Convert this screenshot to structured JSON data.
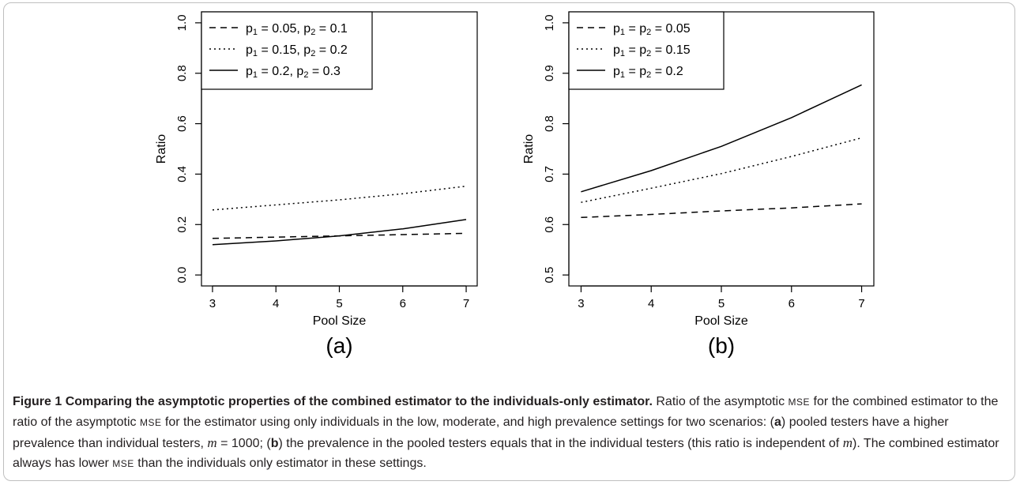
{
  "chart_data": [
    {
      "type": "line",
      "panel_label": "(a)",
      "xlabel": "Pool Size",
      "ylabel": "Ratio",
      "xlim": [
        3,
        7
      ],
      "ylim": [
        0.0,
        1.0
      ],
      "x_ticks": [
        3,
        4,
        5,
        6,
        7
      ],
      "y_ticks": [
        0.0,
        0.2,
        0.4,
        0.6,
        0.8,
        1.0
      ],
      "y_tick_labels": [
        "0.0",
        "0.2",
        "0.4",
        "0.6",
        "0.8",
        "1.0"
      ],
      "legend_position": "top-left",
      "x": [
        3,
        4,
        5,
        6,
        7
      ],
      "series": [
        {
          "style": "dashed",
          "legend": {
            "p1": "p",
            "s1": "1",
            "v1": " = 0.05, ",
            "p2": "p",
            "s2": "2",
            "v2": " = 0.1"
          },
          "values": [
            0.145,
            0.15,
            0.155,
            0.16,
            0.165
          ]
        },
        {
          "style": "dotted",
          "legend": {
            "p1": "p",
            "s1": "1",
            "v1": " = 0.15, ",
            "p2": "p",
            "s2": "2",
            "v2": " = 0.2"
          },
          "values": [
            0.258,
            0.278,
            0.298,
            0.322,
            0.352
          ]
        },
        {
          "style": "solid",
          "legend": {
            "p1": "p",
            "s1": "1",
            "v1": " = 0.2, ",
            "p2": "p",
            "s2": "2",
            "v2": " = 0.3"
          },
          "values": [
            0.12,
            0.135,
            0.155,
            0.183,
            0.22
          ]
        }
      ]
    },
    {
      "type": "line",
      "panel_label": "(b)",
      "xlabel": "Pool Size",
      "ylabel": "Ratio",
      "xlim": [
        3,
        7
      ],
      "ylim": [
        0.5,
        1.0
      ],
      "x_ticks": [
        3,
        4,
        5,
        6,
        7
      ],
      "y_ticks": [
        0.5,
        0.6,
        0.7,
        0.8,
        0.9,
        1.0
      ],
      "y_tick_labels": [
        "0.5",
        "0.6",
        "0.7",
        "0.8",
        "0.9",
        "1.0"
      ],
      "legend_position": "top-left",
      "x": [
        3,
        4,
        5,
        6,
        7
      ],
      "series": [
        {
          "style": "dashed",
          "legend": {
            "p1": "p",
            "s1": "1",
            "v1": " = ",
            "p2": "p",
            "s2": "2",
            "v2": " = 0.05"
          },
          "values": [
            0.614,
            0.62,
            0.627,
            0.633,
            0.641
          ]
        },
        {
          "style": "dotted",
          "legend": {
            "p1": "p",
            "s1": "1",
            "v1": " = ",
            "p2": "p",
            "s2": "2",
            "v2": " = 0.15"
          },
          "values": [
            0.644,
            0.672,
            0.701,
            0.735,
            0.772
          ]
        },
        {
          "style": "solid",
          "legend": {
            "p1": "p",
            "s1": "1",
            "v1": " = ",
            "p2": "p",
            "s2": "2",
            "v2": " = 0.2"
          },
          "values": [
            0.665,
            0.707,
            0.755,
            0.812,
            0.877
          ]
        }
      ]
    }
  ],
  "caption": {
    "figure_label": "Figure 1",
    "title": "Comparing the asymptotic properties of the combined estimator to the individuals-only estimator.",
    "t1": "Ratio of the asymptotic ",
    "mse1": "MSE",
    "t2": " for the combined estimator to the ratio of the asymptotic ",
    "mse2": "MSE",
    "t3": " for the estimator using only individuals in the low, moderate, and high prevalence settings for two scenarios: (",
    "a": "a",
    "t4": ") pooled testers have a higher prevalence than individual testers, ",
    "m1": "m",
    "t5": " = 1000; (",
    "b": "b",
    "t6": ") the prevalence in the pooled testers equals that in the individual testers (this ratio is independent of ",
    "m2": "m",
    "t7": "). The combined estimator always has lower ",
    "mse3": "MSE",
    "t8": " than the individuals only estimator in these settings."
  }
}
